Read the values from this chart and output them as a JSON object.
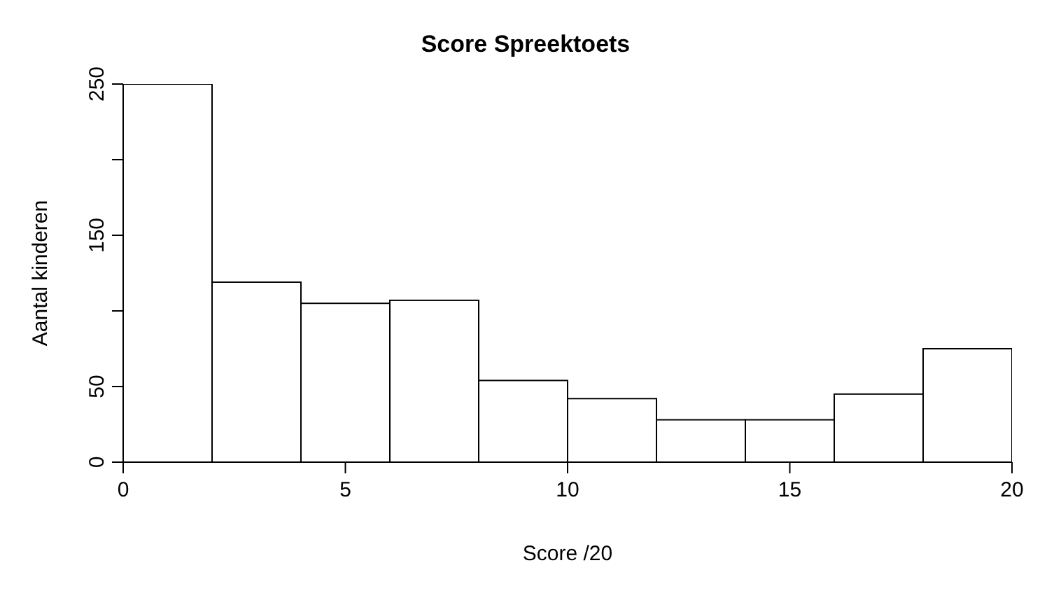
{
  "chart_data": {
    "type": "histogram",
    "title": "Score Spreektoets",
    "xlabel": "Score /20",
    "ylabel": "Aantal kinderen",
    "bins": [
      0,
      2,
      4,
      6,
      8,
      10,
      12,
      14,
      16,
      18,
      20
    ],
    "values": [
      250,
      119,
      105,
      107,
      54,
      42,
      28,
      28,
      45,
      75
    ],
    "color": "#ffffff",
    "xlim": [
      0,
      20
    ],
    "xticks": [
      0,
      5,
      10,
      15,
      20
    ],
    "ylim": [
      0,
      250
    ],
    "yticks": [
      0,
      50,
      {
        "value": 100,
        "label": null
      },
      150,
      {
        "value": 200,
        "label": null
      },
      250
    ],
    "grid": false,
    "legend": false
  }
}
